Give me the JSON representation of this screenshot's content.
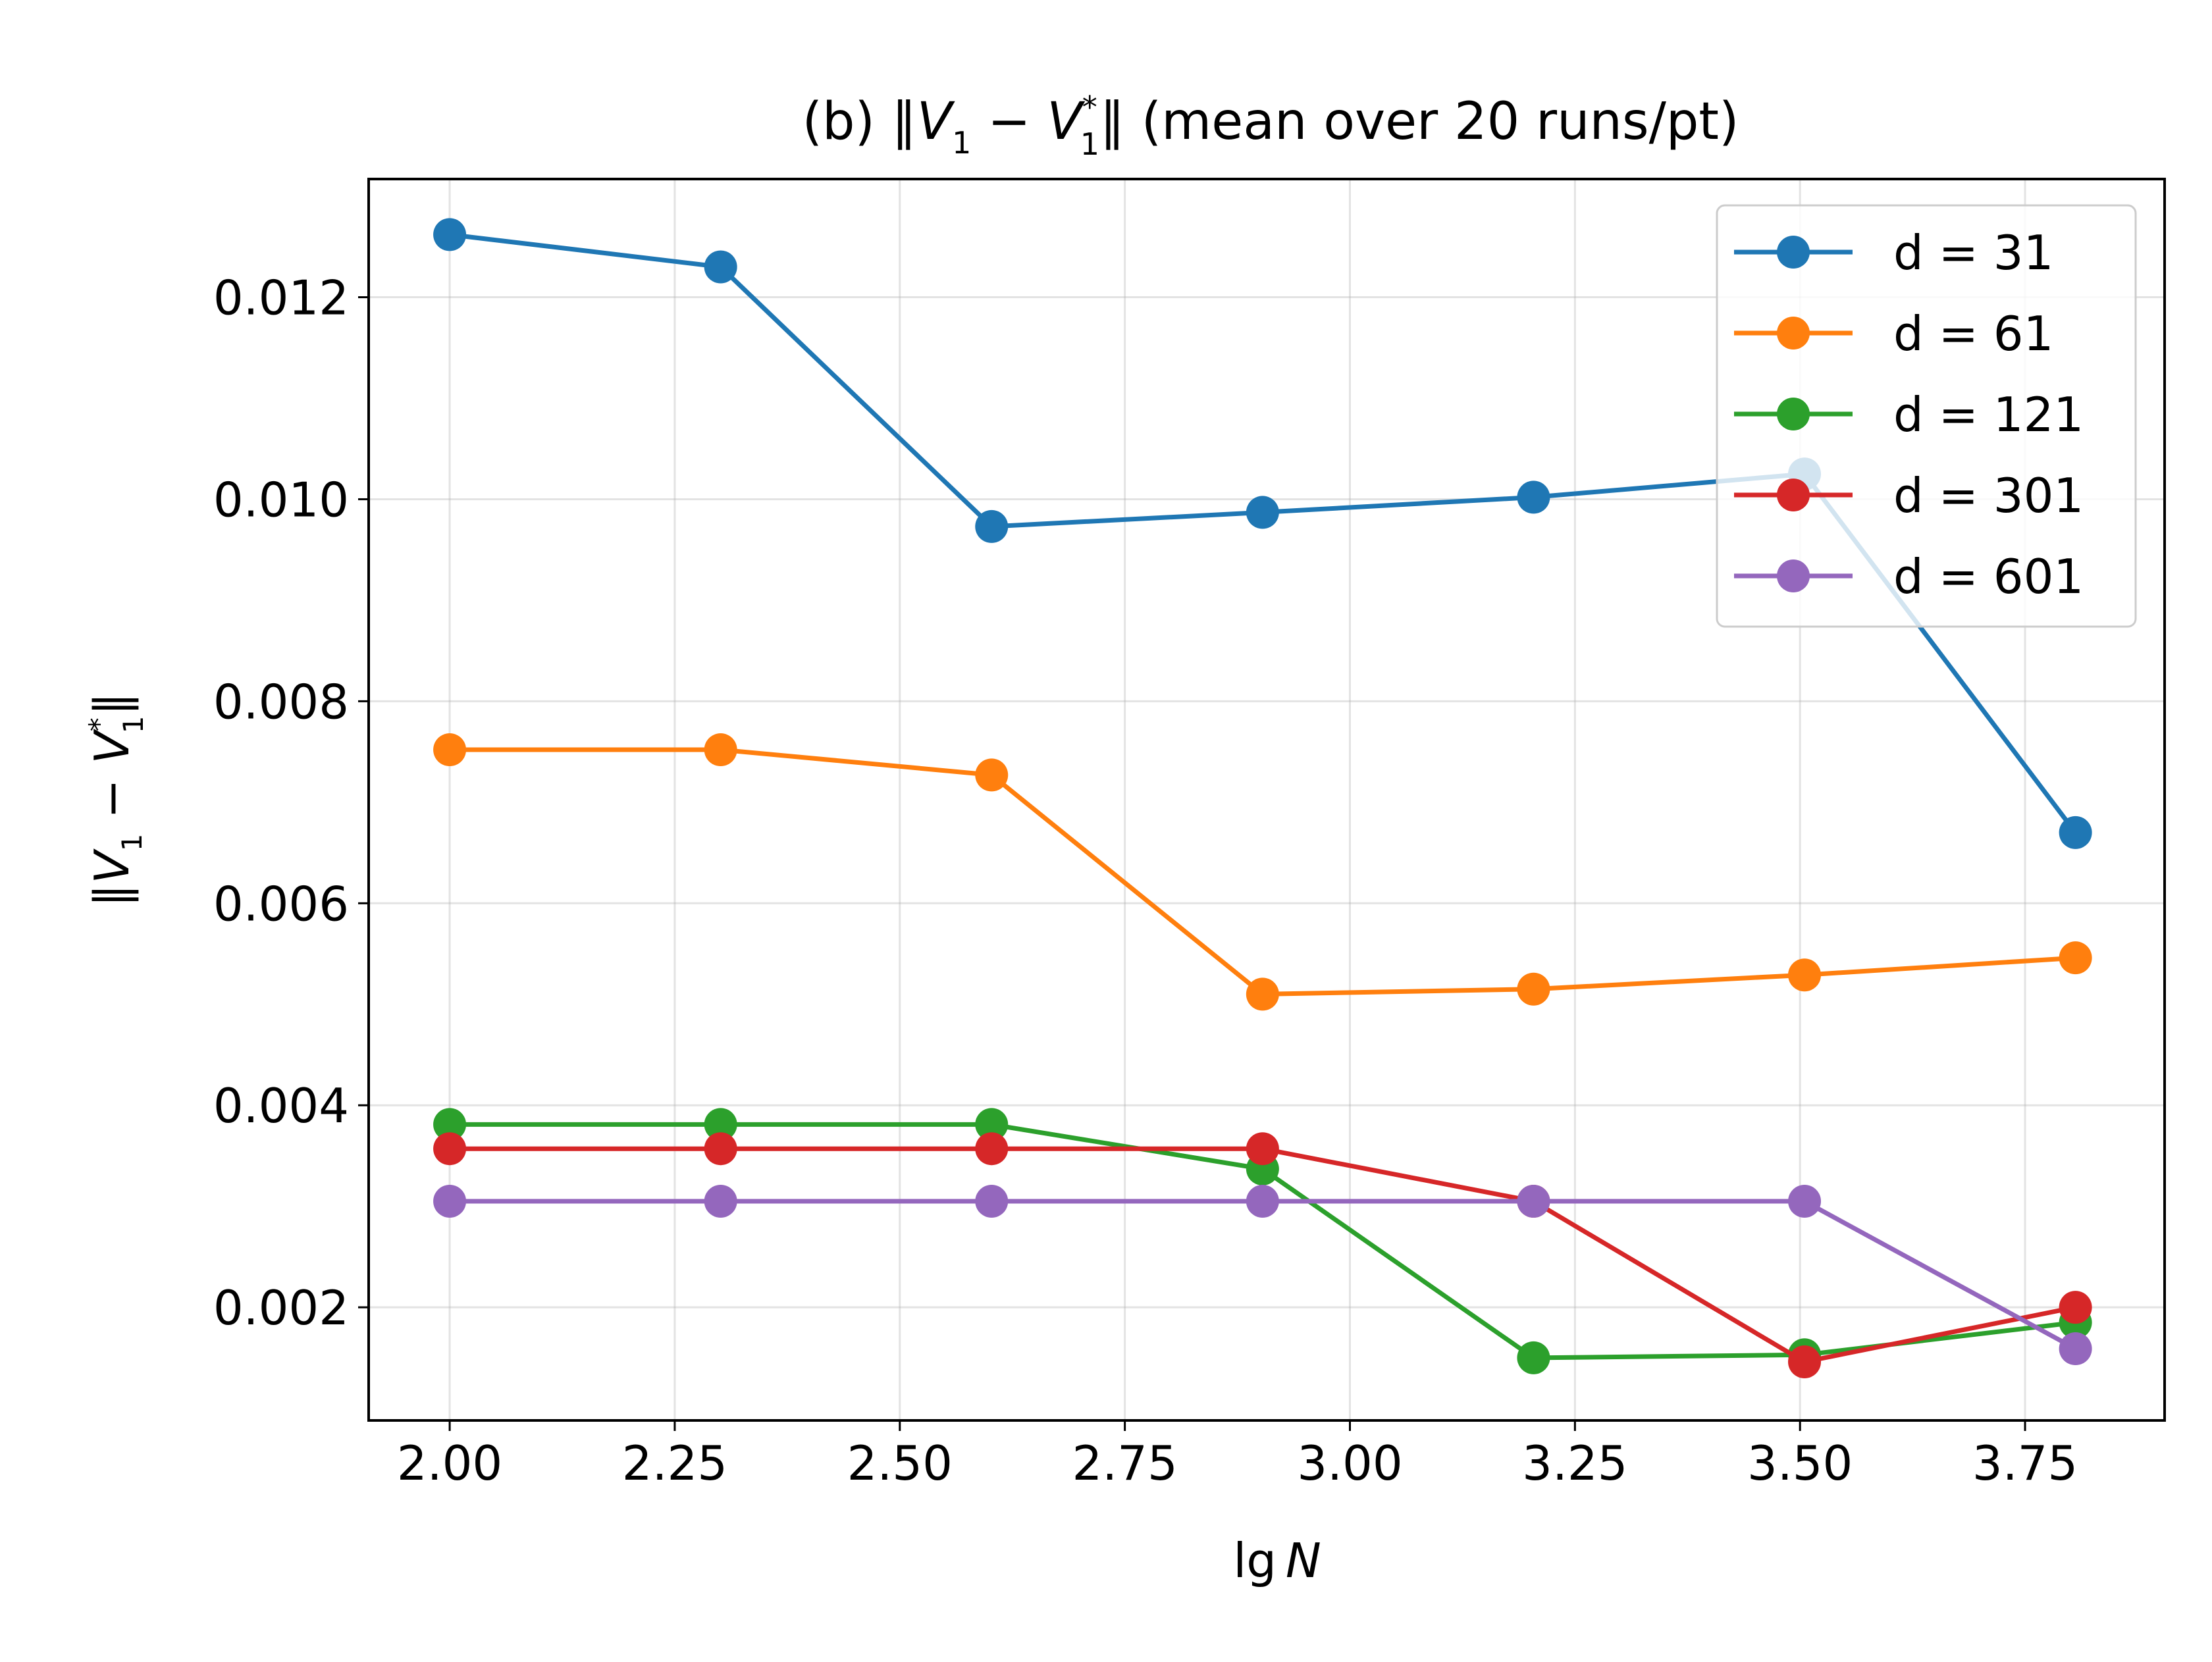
{
  "chart_data": {
    "type": "line",
    "title": {
      "prefix": "(b) ",
      "expr_left": "∥",
      "v": "V",
      "hat": "^",
      "sub": "1",
      "minus": " − ",
      "star": "*",
      "expr_right": "∥",
      "suffix": " (mean over 20 runs/pt)"
    },
    "xlabel": {
      "lg": "lg",
      "n": "N"
    },
    "ylabel": {
      "expr_left": "∥",
      "v": "V",
      "hat": "^",
      "sub": "1",
      "minus": " − ",
      "star": "*",
      "expr_right": "∥"
    },
    "x": [
      2.0,
      2.301,
      2.602,
      2.903,
      3.204,
      3.505,
      3.806
    ],
    "xlim": [
      1.91,
      3.905
    ],
    "ylim": [
      0.00088,
      0.01317
    ],
    "xticks": [
      2.0,
      2.25,
      2.5,
      2.75,
      3.0,
      3.25,
      3.5,
      3.75
    ],
    "xtick_labels": [
      "2.00",
      "2.25",
      "2.50",
      "2.75",
      "3.00",
      "3.25",
      "3.50",
      "3.75"
    ],
    "yticks": [
      0.002,
      0.004,
      0.006,
      0.008,
      0.01,
      0.012
    ],
    "ytick_labels": [
      "0.002",
      "0.004",
      "0.006",
      "0.008",
      "0.010",
      "0.012"
    ],
    "grid": true,
    "legend_position": "top-right",
    "series": [
      {
        "name": "d = 31",
        "color": "#1f77b4",
        "values": [
          0.01262,
          0.0123,
          0.00973,
          0.00987,
          0.01002,
          0.01025,
          0.0067
        ]
      },
      {
        "name": "d = 61",
        "color": "#ff7f0e",
        "values": [
          0.00752,
          0.00752,
          0.00727,
          0.0051,
          0.00515,
          0.00529,
          0.00546
        ]
      },
      {
        "name": "d = 121",
        "color": "#2ca02c",
        "values": [
          0.00381,
          0.00381,
          0.00381,
          0.00337,
          0.0015,
          0.00153,
          0.00185
        ]
      },
      {
        "name": "d = 301",
        "color": "#d62728",
        "values": [
          0.00357,
          0.00357,
          0.00357,
          0.00357,
          0.00305,
          0.00146,
          0.002
        ]
      },
      {
        "name": "d = 601",
        "color": "#9467bd",
        "values": [
          0.00305,
          0.00305,
          0.00305,
          0.00305,
          0.00305,
          0.00305,
          0.00159
        ]
      }
    ]
  }
}
